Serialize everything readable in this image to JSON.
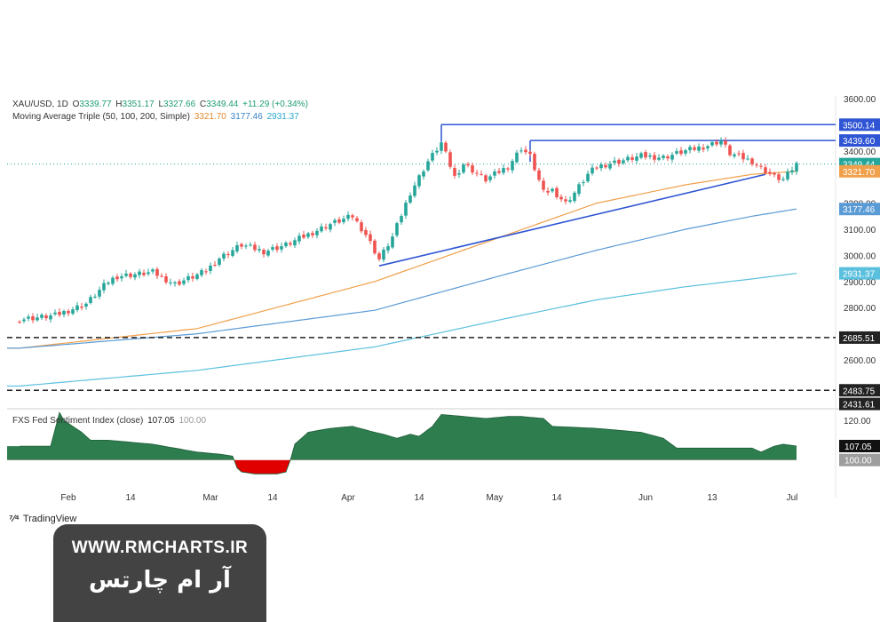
{
  "header": {
    "symbol": "XAU/USD, 1D",
    "open_label": "O",
    "open": "3339.77",
    "high_label": "H",
    "high": "3351.17",
    "low_label": "L",
    "low": "3327.66",
    "close_label": "C",
    "close": "3349.44",
    "change": "+11.29 (+0.34%)",
    "ma_title": "Moving Average Triple (50, 100, 200, Simple)",
    "ma50": "3321.70",
    "ma100": "3177.46",
    "ma200": "2931.37"
  },
  "sub_header": {
    "title": "FXS Fed Sentiment Index (close)",
    "value": "107.05",
    "base": "100.00"
  },
  "branding": {
    "tv": "TradingView",
    "url": "WWW.RMCHARTS.IR",
    "fa": "آر ام چارتس"
  },
  "colors": {
    "up": "#26a69a",
    "down": "#ef5350",
    "ma50": "#f0a04b",
    "ma100": "#5b9bd5",
    "ma200": "#5bc0de",
    "resistance": "#2f55d4",
    "sentiment_fill": "#2e7d4f",
    "sentiment_neg": "#e00000"
  },
  "chart_data": [
    {
      "type": "candlestick",
      "title": "XAU/USD, 1D",
      "y_ticks": [
        "3600.00",
        "3400.00",
        "3200.00",
        "3100.00",
        "3000.00",
        "2900.00",
        "2800.00",
        "2600.00"
      ],
      "x_ticks": [
        "Feb",
        "14",
        "Mar",
        "14",
        "Apr",
        "14",
        "May",
        "14",
        "Jun",
        "13",
        "Jul"
      ],
      "ylim": [
        2420,
        3610
      ],
      "price_labels": [
        {
          "value": 3500.14,
          "text": "3500.14",
          "color": "#2f55d4"
        },
        {
          "value": 3439.6,
          "text": "3439.60",
          "color": "#2f55d4"
        },
        {
          "value": 3349.44,
          "text": "3349.44",
          "color": "#26a69a"
        },
        {
          "value": 3321.7,
          "text": "3321.70",
          "color": "#f0a04b"
        },
        {
          "value": 3177.46,
          "text": "3177.46",
          "color": "#5b9bd5"
        },
        {
          "value": 2931.37,
          "text": "2931.37",
          "color": "#5bc0de"
        },
        {
          "value": 2685.51,
          "text": "2685.51",
          "color": "#222222"
        },
        {
          "value": 2483.75,
          "text": "2483.75",
          "color": "#222222"
        },
        {
          "value": 2431.61,
          "text": "2431.61",
          "color": "#222222"
        }
      ],
      "horizontal_levels": [
        {
          "value": 3500.14,
          "start_index": 95,
          "style": "solid"
        },
        {
          "value": 3439.6,
          "start_index": 115,
          "style": "solid"
        },
        {
          "value": 2685.51,
          "start_index": 0,
          "style": "dashed"
        },
        {
          "value": 2483.75,
          "start_index": 0,
          "style": "dashed"
        }
      ],
      "trendline": {
        "from": {
          "index": 81,
          "value": 2960
        },
        "to": {
          "index": 168,
          "value": 3310
        }
      },
      "series": [
        {
          "name": "MA 50",
          "key": "ma50",
          "x": [
            0,
            40,
            80,
            110,
            130,
            150,
            165,
            175
          ],
          "values": [
            2645,
            2720,
            2900,
            3080,
            3200,
            3270,
            3310,
            3321.7
          ]
        },
        {
          "name": "MA 100",
          "key": "ma100",
          "x": [
            0,
            40,
            80,
            110,
            130,
            150,
            165,
            175
          ],
          "values": [
            2645,
            2700,
            2790,
            2930,
            3020,
            3100,
            3150,
            3177.46
          ]
        },
        {
          "name": "MA 200",
          "key": "ma200",
          "x": [
            0,
            40,
            80,
            110,
            130,
            150,
            165,
            175
          ],
          "values": [
            2500,
            2560,
            2650,
            2760,
            2830,
            2880,
            2910,
            2931.37
          ]
        }
      ],
      "close_path": {
        "x": [
          0,
          8,
          15,
          20,
          22,
          30,
          35,
          40,
          42,
          45,
          50,
          55,
          60,
          65,
          70,
          75,
          78,
          81,
          84,
          88,
          92,
          95,
          98,
          100,
          105,
          110,
          113,
          115,
          118,
          120,
          123,
          125,
          128,
          130,
          135,
          140,
          145,
          150,
          155,
          158,
          160,
          165,
          167,
          170,
          172,
          175
        ],
        "values": [
          2755,
          2770,
          2815,
          2900,
          2920,
          2935,
          2890,
          2925,
          2940,
          2990,
          3040,
          3015,
          3040,
          3080,
          3120,
          3150,
          3080,
          2985,
          3070,
          3240,
          3360,
          3430,
          3300,
          3350,
          3290,
          3340,
          3410,
          3380,
          3240,
          3250,
          3200,
          3240,
          3310,
          3340,
          3360,
          3380,
          3375,
          3400,
          3420,
          3440,
          3390,
          3360,
          3335,
          3300,
          3290,
          3349.44
        ]
      },
      "ohlc_last": {
        "open": 3339.77,
        "high": 3351.17,
        "low": 3327.66,
        "close": 3349.44
      }
    },
    {
      "type": "area",
      "title": "FXS Fed Sentiment Index (close)",
      "ylim": [
        90,
        125
      ],
      "baseline": 100,
      "y_ticks": [
        "120.00"
      ],
      "last_value": 107.05,
      "x": [
        0,
        7,
        9,
        10,
        14,
        15,
        16,
        20,
        30,
        40,
        45,
        48,
        49,
        50,
        53,
        58,
        60,
        61,
        62,
        65,
        70,
        75,
        80,
        82,
        85,
        88,
        90,
        93,
        95,
        100,
        105,
        110,
        113,
        118,
        120,
        130,
        135,
        140,
        145,
        148,
        150,
        152,
        160,
        165,
        167,
        170,
        172,
        175
      ],
      "values": [
        107,
        107,
        124,
        120,
        114,
        112,
        110,
        110,
        108,
        104,
        103,
        102,
        96,
        94,
        93,
        93,
        94,
        100,
        108,
        114,
        116,
        117,
        114,
        113,
        111,
        113,
        112,
        117,
        123,
        122,
        121,
        122,
        122,
        121,
        117,
        116,
        115,
        114,
        111,
        106,
        106,
        106,
        106,
        106,
        104,
        107,
        108,
        107.05
      ]
    }
  ]
}
